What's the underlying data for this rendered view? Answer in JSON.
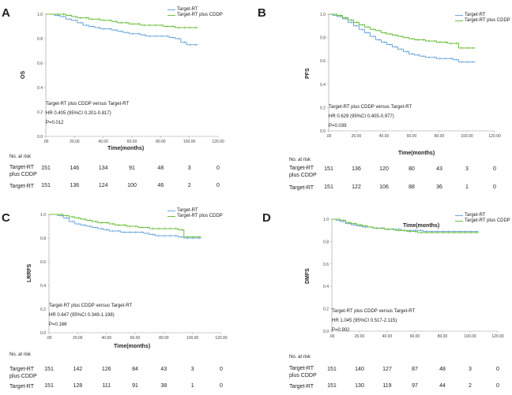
{
  "chart_data": [
    {
      "type": "line",
      "panel": "A",
      "ylabel": "OS",
      "xlabel": "Time(months)",
      "ylim": [
        0.0,
        1.0
      ],
      "yticks": [
        "0.0",
        "0.2",
        "0.4",
        "0.6",
        "0.8",
        "1.0"
      ],
      "xlim": [
        0,
        120
      ],
      "xticks": [
        ".00",
        "20.00",
        "40.00",
        "60.00",
        "80.00",
        "100.00",
        "120.00"
      ],
      "legend": [
        "Target-RT",
        "Target-RT plus CDDP"
      ],
      "stats": [
        "Target-RT plus CDDP versus Target-RT",
        "HR 0.405 (95%CI 0.201-0.817)",
        "P=0.012"
      ],
      "series": [
        {
          "name": "Target-RT",
          "color": "#6fa8dc",
          "x": [
            0,
            3,
            6,
            10,
            14,
            18,
            22,
            26,
            30,
            34,
            38,
            42,
            46,
            50,
            54,
            58,
            62,
            66,
            70,
            74,
            78,
            82,
            86,
            90,
            94,
            98,
            102,
            106
          ],
          "y": [
            1.0,
            1.0,
            0.99,
            0.98,
            0.96,
            0.95,
            0.93,
            0.91,
            0.9,
            0.89,
            0.88,
            0.88,
            0.87,
            0.86,
            0.85,
            0.84,
            0.84,
            0.83,
            0.82,
            0.82,
            0.82,
            0.82,
            0.81,
            0.8,
            0.77,
            0.75,
            0.75,
            0.75
          ]
        },
        {
          "name": "Target-RT plus CDDP",
          "color": "#6cbf3e",
          "x": [
            0,
            3,
            6,
            10,
            14,
            18,
            22,
            26,
            30,
            34,
            38,
            42,
            46,
            50,
            54,
            58,
            62,
            66,
            70,
            74,
            78,
            82,
            86,
            90,
            94,
            98,
            102,
            106
          ],
          "y": [
            1.0,
            1.0,
            1.0,
            1.0,
            0.99,
            0.98,
            0.97,
            0.97,
            0.96,
            0.96,
            0.95,
            0.95,
            0.94,
            0.93,
            0.93,
            0.92,
            0.92,
            0.91,
            0.91,
            0.91,
            0.91,
            0.9,
            0.9,
            0.89,
            0.89,
            0.89,
            0.89,
            0.89
          ]
        }
      ],
      "risk_table": {
        "header": "No. at risk",
        "rows": [
          {
            "label": "Target-RT plus CDDP",
            "values": [
              "151",
              "146",
              "134",
              "91",
              "48",
              "3",
              "0"
            ]
          },
          {
            "label": "Target-RT",
            "values": [
              "151",
              "136",
              "124",
              "100",
              "46",
              "2",
              "0"
            ]
          }
        ]
      }
    },
    {
      "type": "line",
      "panel": "B",
      "ylabel": "PFS",
      "xlabel": "Time(months)",
      "ylim": [
        0.0,
        1.0
      ],
      "yticks": [
        "0.0",
        "0.2",
        "0.4",
        "0.6",
        "0.8",
        "1.0"
      ],
      "xlim": [
        0,
        120
      ],
      "xticks": [
        ".00",
        "20.00",
        "40.00",
        "60.00",
        "80.00",
        "100.00",
        "120.00"
      ],
      "legend": [
        "Target-RT",
        "Target-RT plus CDDP"
      ],
      "stats": [
        "Target-RT plus CDDP versus Target-RT",
        "HR 0.629 (95%CI 0.405-0.977)",
        "P=0.039"
      ],
      "series": [
        {
          "name": "Target-RT",
          "color": "#6fa8dc",
          "x": [
            0,
            3,
            6,
            10,
            14,
            18,
            22,
            26,
            30,
            34,
            38,
            42,
            46,
            50,
            54,
            58,
            62,
            66,
            70,
            74,
            78,
            82,
            86,
            90,
            94,
            98,
            102,
            106
          ],
          "y": [
            1.0,
            0.99,
            0.98,
            0.96,
            0.93,
            0.9,
            0.87,
            0.84,
            0.81,
            0.78,
            0.76,
            0.74,
            0.72,
            0.7,
            0.68,
            0.66,
            0.65,
            0.64,
            0.63,
            0.63,
            0.62,
            0.62,
            0.62,
            0.61,
            0.59,
            0.59,
            0.59,
            0.59
          ]
        },
        {
          "name": "Target-RT plus CDDP",
          "color": "#6cbf3e",
          "x": [
            0,
            3,
            6,
            10,
            14,
            18,
            22,
            26,
            30,
            34,
            38,
            42,
            46,
            50,
            54,
            58,
            62,
            66,
            70,
            74,
            78,
            82,
            86,
            90,
            94,
            98,
            102,
            106
          ],
          "y": [
            1.0,
            1.0,
            0.99,
            0.97,
            0.95,
            0.93,
            0.91,
            0.89,
            0.87,
            0.86,
            0.84,
            0.83,
            0.82,
            0.81,
            0.8,
            0.79,
            0.78,
            0.78,
            0.77,
            0.77,
            0.76,
            0.76,
            0.75,
            0.75,
            0.71,
            0.71,
            0.71,
            0.71
          ]
        }
      ],
      "risk_table": {
        "header": "No. at risk",
        "rows": [
          {
            "label": "Target-RT plus CDDP",
            "values": [
              "151",
              "136",
              "120",
              "80",
              "43",
              "3",
              "0"
            ]
          },
          {
            "label": "Target-RT",
            "values": [
              "151",
              "122",
              "106",
              "88",
              "36",
              "1",
              "0"
            ]
          }
        ]
      }
    },
    {
      "type": "line",
      "panel": "C",
      "ylabel": "LRRFS",
      "xlabel": "Time(months)",
      "ylim": [
        0.0,
        1.0
      ],
      "yticks": [
        "0.0",
        "0.2",
        "0.4",
        "0.6",
        "0.8",
        "1.0"
      ],
      "xlim": [
        0,
        120
      ],
      "xticks": [
        ".00",
        "20.00",
        "40.00",
        "60.00",
        "80.00",
        "100.00",
        "120.00"
      ],
      "legend": [
        "Target-RT",
        "Target-RT plus CDDP"
      ],
      "stats": [
        "Target-RT plus CDDP versus Target-RT",
        "HR 0.647 (95%CI 0.349-1.198)",
        "P=0.166"
      ],
      "series": [
        {
          "name": "Target-RT",
          "color": "#6fa8dc",
          "x": [
            0,
            3,
            6,
            10,
            14,
            18,
            22,
            26,
            30,
            34,
            38,
            42,
            46,
            50,
            54,
            58,
            62,
            66,
            70,
            74,
            78,
            82,
            86,
            90,
            94,
            98,
            102,
            106
          ],
          "y": [
            1.0,
            1.0,
            0.99,
            0.97,
            0.94,
            0.92,
            0.91,
            0.9,
            0.89,
            0.88,
            0.87,
            0.86,
            0.86,
            0.85,
            0.85,
            0.85,
            0.85,
            0.84,
            0.83,
            0.82,
            0.82,
            0.82,
            0.82,
            0.81,
            0.8,
            0.8,
            0.8,
            0.8
          ]
        },
        {
          "name": "Target-RT plus CDDP",
          "color": "#6cbf3e",
          "x": [
            0,
            3,
            6,
            10,
            14,
            18,
            22,
            26,
            30,
            34,
            38,
            42,
            46,
            50,
            54,
            58,
            62,
            66,
            70,
            74,
            78,
            82,
            86,
            90,
            94,
            98,
            102,
            106
          ],
          "y": [
            1.0,
            1.0,
            1.0,
            0.99,
            0.98,
            0.97,
            0.96,
            0.95,
            0.94,
            0.93,
            0.93,
            0.92,
            0.91,
            0.91,
            0.9,
            0.9,
            0.89,
            0.89,
            0.88,
            0.88,
            0.88,
            0.88,
            0.88,
            0.87,
            0.81,
            0.81,
            0.81,
            0.81
          ]
        }
      ],
      "risk_table": {
        "header": "No. at risk",
        "rows": [
          {
            "label": "Target-RT plus CDDP",
            "values": [
              "151",
              "142",
              "126",
              "84",
              "43",
              "3",
              "0"
            ]
          },
          {
            "label": "Target-RT",
            "values": [
              "151",
              "128",
              "111",
              "91",
              "38",
              "1",
              "0"
            ]
          }
        ]
      }
    },
    {
      "type": "line",
      "panel": "D",
      "ylabel": "DMFS",
      "xlabel": "Time(months)",
      "ylim": [
        0.0,
        1.0
      ],
      "yticks": [
        "0.0",
        "0.2",
        "0.4",
        "0.6",
        "0.8",
        "1.0"
      ],
      "xlim": [
        0,
        120
      ],
      "xticks": [
        ".00",
        "20.00",
        "40.00",
        "60.00",
        "80.00",
        "100.00",
        "120.00"
      ],
      "legend": [
        "Target-RT",
        "Target-RT plus CDDP"
      ],
      "stats": [
        "Target-RT plus CDDP versus Target-RT",
        "HR 1.045 (95%CI 0.517-2.115)",
        "P=0.902"
      ],
      "series": [
        {
          "name": "Target-RT",
          "color": "#6fa8dc",
          "x": [
            0,
            3,
            6,
            10,
            14,
            18,
            22,
            26,
            30,
            34,
            38,
            42,
            46,
            50,
            54,
            58,
            62,
            66,
            70,
            74,
            78,
            82,
            86,
            90,
            94,
            98,
            102,
            106
          ],
          "y": [
            1.0,
            0.99,
            0.98,
            0.96,
            0.95,
            0.94,
            0.93,
            0.93,
            0.92,
            0.92,
            0.91,
            0.91,
            0.91,
            0.9,
            0.9,
            0.9,
            0.9,
            0.89,
            0.89,
            0.89,
            0.89,
            0.89,
            0.89,
            0.89,
            0.89,
            0.89,
            0.89,
            0.89
          ]
        },
        {
          "name": "Target-RT plus CDDP",
          "color": "#6cbf3e",
          "x": [
            0,
            3,
            6,
            10,
            14,
            18,
            22,
            26,
            30,
            34,
            38,
            42,
            46,
            50,
            54,
            58,
            62,
            66,
            70,
            74,
            78,
            82,
            86,
            90,
            94,
            98,
            102,
            106
          ],
          "y": [
            1.0,
            1.0,
            0.99,
            0.97,
            0.96,
            0.95,
            0.94,
            0.93,
            0.92,
            0.92,
            0.91,
            0.91,
            0.9,
            0.9,
            0.89,
            0.89,
            0.88,
            0.88,
            0.88,
            0.88,
            0.88,
            0.88,
            0.88,
            0.88,
            0.88,
            0.88,
            0.88,
            0.88
          ]
        }
      ],
      "risk_table": {
        "header": "No. at risk",
        "rows": [
          {
            "label": "Target-RT plus CDDP",
            "values": [
              "151",
              "140",
              "127",
              "87",
              "48",
              "3",
              "0"
            ]
          },
          {
            "label": "Target-RT",
            "values": [
              "151",
              "130",
              "119",
              "97",
              "44",
              "2",
              "0"
            ]
          }
        ]
      }
    }
  ]
}
